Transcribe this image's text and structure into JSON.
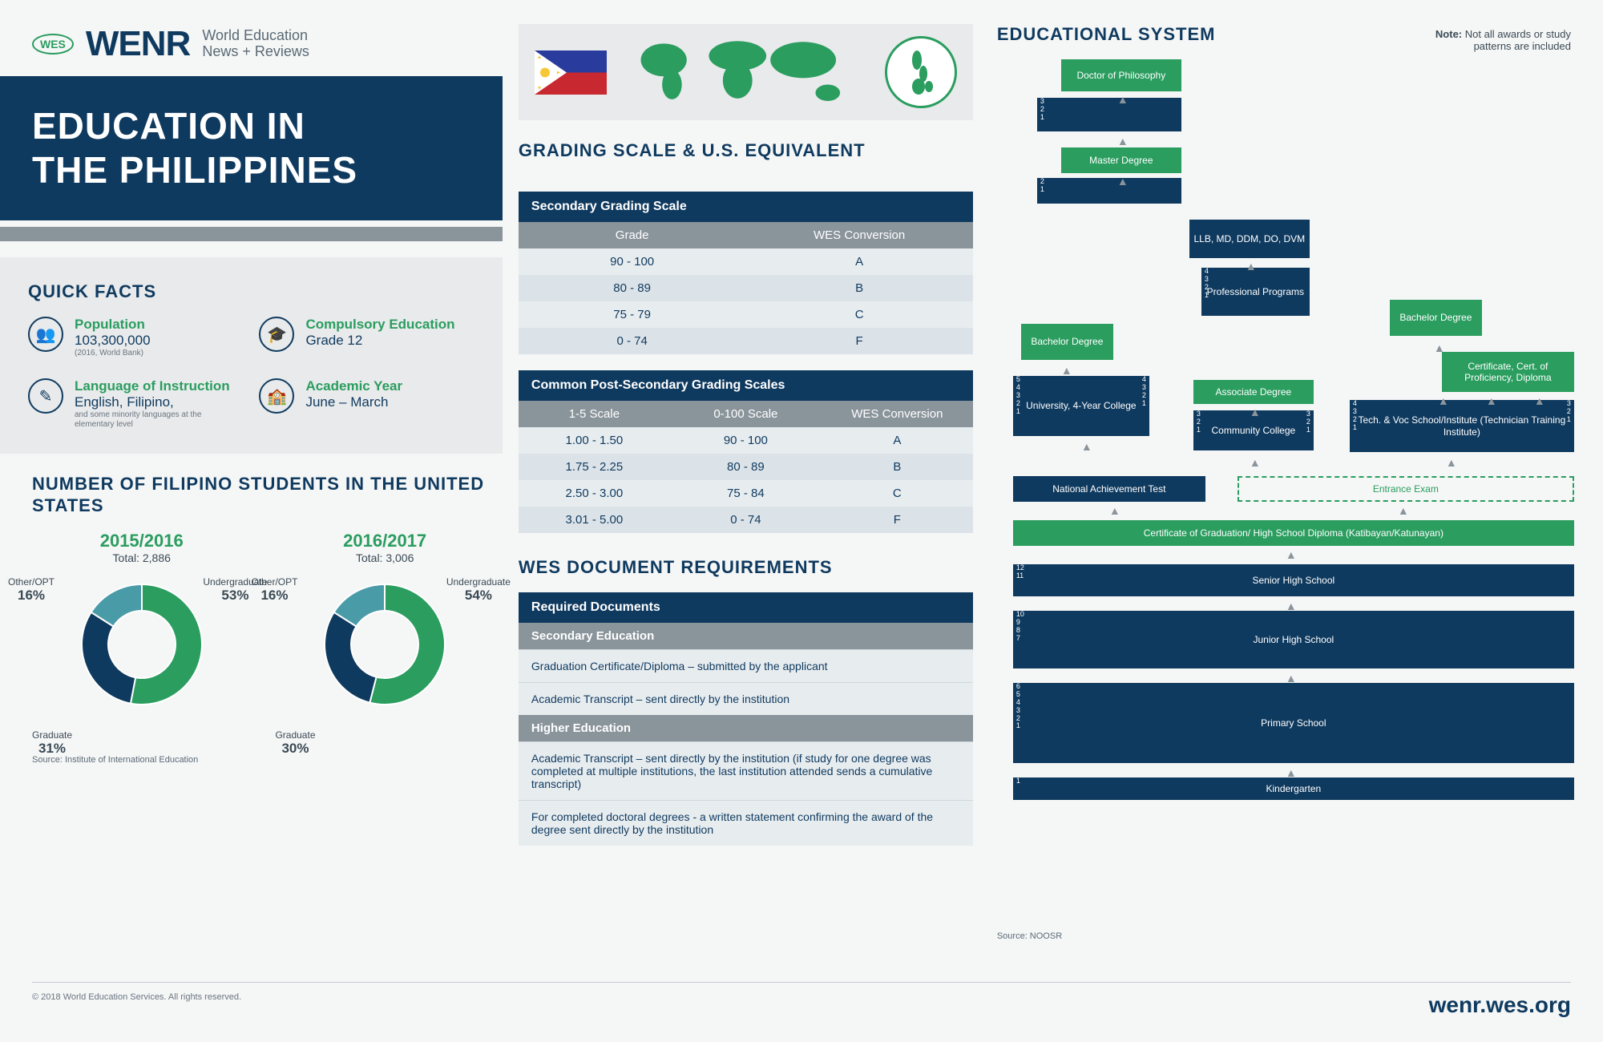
{
  "header": {
    "badge": "WES",
    "brand": "WENR",
    "sub1": "World Education",
    "sub2": "News + Reviews"
  },
  "title": {
    "line1": "EDUCATION IN",
    "line2": "THE PHILIPPINES"
  },
  "quickFacts": {
    "title": "QUICK FACTS",
    "items": [
      {
        "label": "Population",
        "value": "103,300,000",
        "note": "(2016, World Bank)"
      },
      {
        "label": "Compulsory Education",
        "value": "Grade 12",
        "note": ""
      },
      {
        "label": "Language of Instruction",
        "value": "English, Filipino,",
        "note": "and some minority languages at the elementary level"
      },
      {
        "label": "Academic Year",
        "value": "June – March",
        "note": ""
      }
    ]
  },
  "students": {
    "title": "NUMBER OF FILIPINO STUDENTS IN THE UNITED STATES",
    "charts": [
      {
        "year": "2015/2016",
        "total": "Total: 2,886",
        "segments": [
          {
            "label": "Undergraduate",
            "pct": "53%",
            "value": 53,
            "color": "#2a9d5f"
          },
          {
            "label": "Graduate",
            "pct": "31%",
            "value": 31,
            "color": "#0f3a5f"
          },
          {
            "label": "Other/OPT",
            "pct": "16%",
            "value": 16,
            "color": "#4a9ba8"
          }
        ]
      },
      {
        "year": "2016/2017",
        "total": "Total: 3,006",
        "segments": [
          {
            "label": "Undergraduate",
            "pct": "54%",
            "value": 54,
            "color": "#2a9d5f"
          },
          {
            "label": "Graduate",
            "pct": "30%",
            "value": 30,
            "color": "#0f3a5f"
          },
          {
            "label": "Other/OPT",
            "pct": "16%",
            "value": 16,
            "color": "#4a9ba8"
          }
        ]
      }
    ],
    "source": "Source: Institute of International Education"
  },
  "grading": {
    "title": "GRADING SCALE & U.S. EQUIVALENT",
    "secondary": {
      "header": "Secondary Grading Scale",
      "cols": [
        "Grade",
        "WES Conversion"
      ],
      "rows": [
        [
          "90 - 100",
          "A"
        ],
        [
          "80 - 89",
          "B"
        ],
        [
          "75 - 79",
          "C"
        ],
        [
          "0 - 74",
          "F"
        ]
      ]
    },
    "post": {
      "header": "Common Post-Secondary Grading Scales",
      "cols": [
        "1-5 Scale",
        "0-100 Scale",
        "WES Conversion"
      ],
      "rows": [
        [
          "1.00 - 1.50",
          "90 - 100",
          "A"
        ],
        [
          "1.75 - 2.25",
          "80 - 89",
          "B"
        ],
        [
          "2.50 - 3.00",
          "75 - 84",
          "C"
        ],
        [
          "3.01 - 5.00",
          "0 - 74",
          "F"
        ]
      ]
    }
  },
  "docs": {
    "title": "WES DOCUMENT REQUIREMENTS",
    "header": "Required Documents",
    "sections": [
      {
        "name": "Secondary Education",
        "items": [
          "Graduation Certificate/Diploma – submitted by the applicant",
          "Academic Transcript – sent directly by the institution"
        ]
      },
      {
        "name": "Higher Education",
        "items": [
          "Academic Transcript – sent directly by the institution (if study for one degree was completed at multiple institutions, the last institution attended sends a cumulative transcript)",
          "For completed doctoral degrees - a written statement confirming the award of the degree sent directly by the institution"
        ]
      }
    ]
  },
  "edu": {
    "title": "EDUCATIONAL SYSTEM",
    "note_label": "Note:",
    "note": "Not all awards or study patterns are included",
    "source": "Source: NOOSR",
    "blocks": {
      "phd": "Doctor of Philosophy",
      "phd_yrs": "3\n2\n1",
      "master": "Master Degree",
      "master_yrs": "2\n1",
      "llb": "LLB, MD, DDM, DO, DVM",
      "prof": "Professional Programs",
      "prof_yrs": "4\n3\n2\n1",
      "bach1": "Bachelor Degree",
      "bach2": "Bachelor Degree",
      "cert": "Certificate, Cert. of Proficiency, Diploma",
      "assoc": "Associate Degree",
      "univ": "University, 4-Year College",
      "univ_yrs_l": "5\n4\n3\n2\n1",
      "univ_yrs_r": "4\n3\n2\n1",
      "cc": "Community College",
      "cc_yrs": "3\n2\n1",
      "tech": "Tech. & Voc School/Institute (Technician Training Institute)",
      "tech_yrs_l": "4\n3\n2\n1",
      "tech_yrs_r": "3\n2\n1",
      "nat": "National Achievement Test",
      "entrance": "Entrance Exam",
      "certgrad": "Certificate of Graduation/ High School Diploma (Katibayan/Katunayan)",
      "senior": "Senior High School",
      "senior_yrs": "12\n11",
      "junior": "Junior High School",
      "junior_yrs": "10\n9\n8\n7",
      "primary": "Primary School",
      "primary_yrs": "6\n5\n4\n3\n2\n1",
      "kinder": "Kindergarten",
      "kinder_yrs": "1"
    }
  },
  "footer": {
    "copyright": "© 2018 World Education Services. All rights reserved.",
    "url": "wenr.wes.org"
  }
}
